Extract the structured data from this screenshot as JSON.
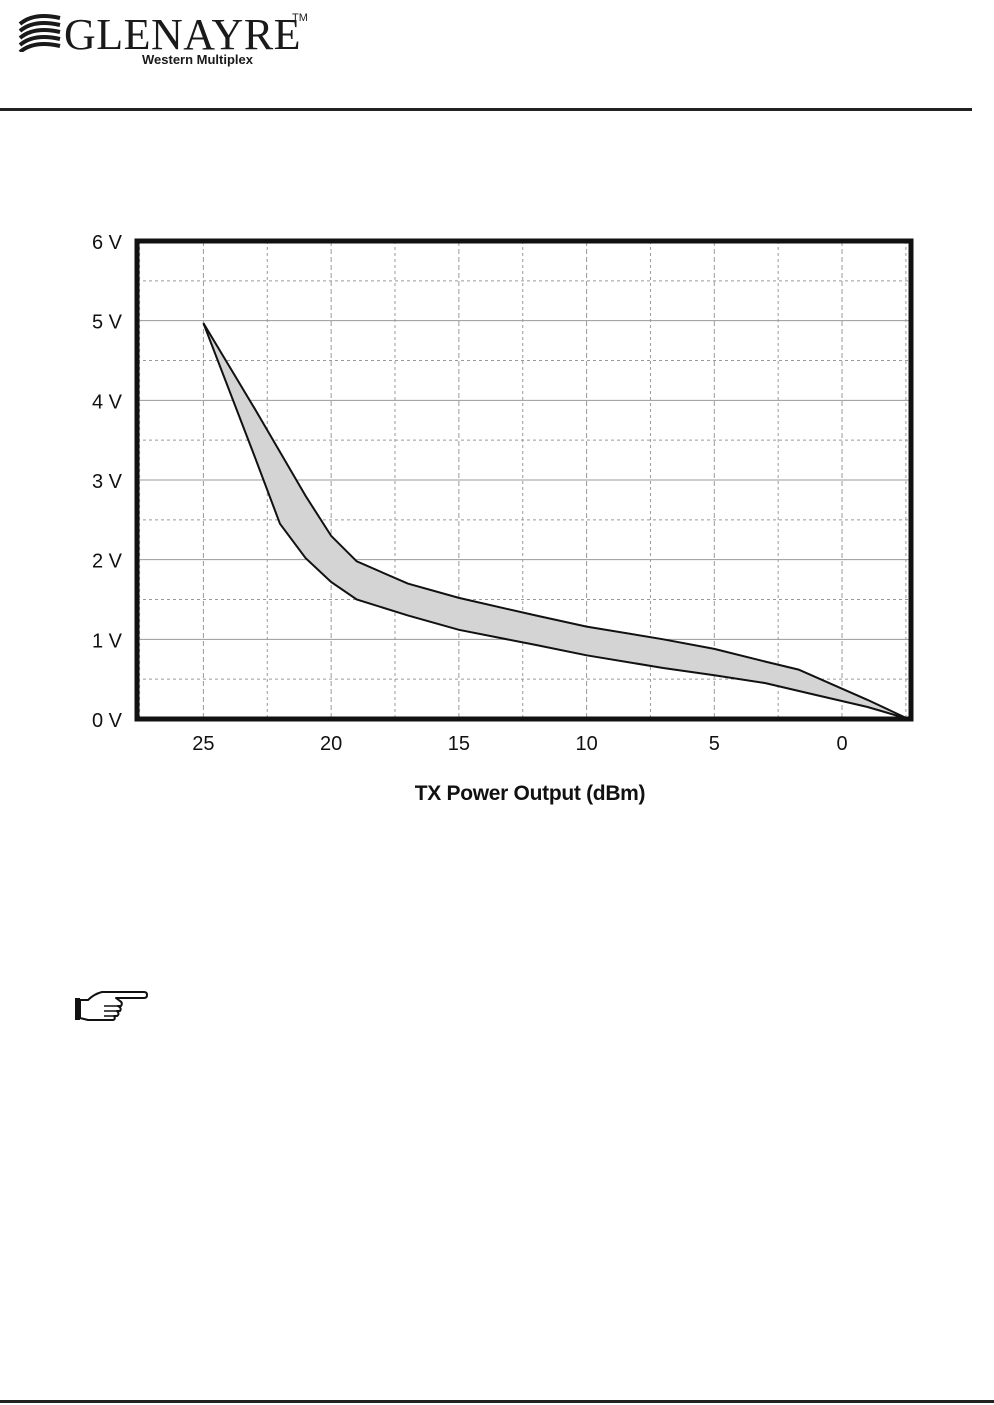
{
  "header": {
    "brand": "GLENAYRE",
    "trademark": "TM",
    "subtitle": "Western Multiplex",
    "logo_icon": "glenayre-wave-logo"
  },
  "chart_data": {
    "type": "area",
    "title": "",
    "xlabel": "TX Power Output (dBm)",
    "ylabel": "",
    "x_ticks": [
      25,
      20,
      15,
      10,
      5,
      0
    ],
    "x_tick_labels": [
      "25",
      "20",
      "15",
      "10",
      "5",
      "0"
    ],
    "y_ticks": [
      0,
      1,
      2,
      3,
      4,
      5,
      6
    ],
    "y_tick_labels": [
      "0 V",
      "1 V",
      "2 V",
      "3 V",
      "4 V",
      "5 V",
      "6 V"
    ],
    "xlim": [
      27.6,
      -2.7
    ],
    "ylim": [
      0,
      6
    ],
    "grid": true,
    "band_fill": "#d4d4d4",
    "line_color": "#111111",
    "series": [
      {
        "x": [
          25,
          23,
          21,
          20,
          19,
          17,
          15,
          12,
          10,
          7,
          5,
          3,
          1.7,
          0,
          -1,
          -2.6
        ],
        "values": [
          4.97,
          3.9,
          2.8,
          2.3,
          1.98,
          1.7,
          1.52,
          1.3,
          1.16,
          1.0,
          0.88,
          0.72,
          0.62,
          0.38,
          0.24,
          0.0
        ]
      },
      {
        "x": [
          25,
          23,
          22,
          21,
          20,
          19,
          17,
          15,
          12,
          10,
          7,
          5,
          3,
          1,
          -1,
          -2.6
        ],
        "values": [
          4.97,
          3.3,
          2.45,
          2.02,
          1.72,
          1.5,
          1.3,
          1.12,
          0.93,
          0.8,
          0.64,
          0.55,
          0.45,
          0.3,
          0.15,
          0.0
        ]
      }
    ]
  },
  "note_icon": "pointing-hand-icon"
}
